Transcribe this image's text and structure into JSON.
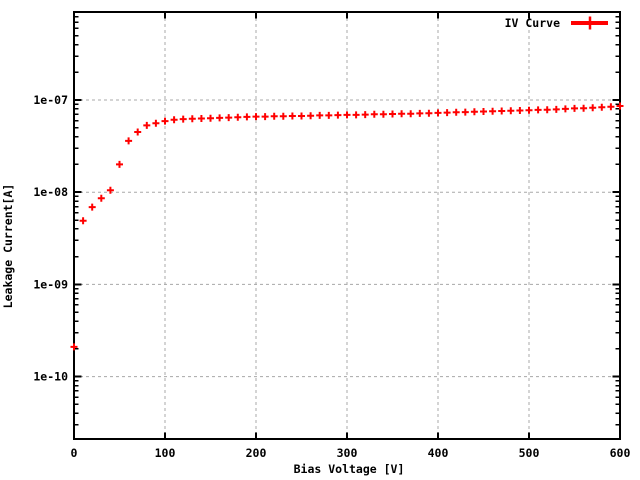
{
  "chart_data": {
    "type": "scatter",
    "title": "",
    "xlabel": "Bias Voltage [V]",
    "ylabel": "Leakage Current[A]",
    "x_range": [
      0,
      600
    ],
    "y_scale": "log",
    "y_range": [
      "2e-11",
      "9e-07"
    ],
    "grid": true,
    "marker": "plus",
    "legend_position": "top-right-inside",
    "x_ticks": [
      0,
      100,
      200,
      300,
      400,
      500,
      600
    ],
    "x_tick_labels": [
      "0",
      "100",
      "200",
      "300",
      "400",
      "500",
      "600"
    ],
    "y_tick_labels": [
      "1e-10",
      "1e-09",
      "1e-08",
      "1e-07"
    ],
    "colors": {
      "series": "#ff0000",
      "grid": "#a8a8a8",
      "border": "#000000",
      "text": "#000000",
      "background": "#ffffff"
    },
    "series": [
      {
        "name": "IV Curve",
        "x": [
          0,
          10,
          20,
          30,
          40,
          50,
          60,
          70,
          80,
          90,
          100,
          110,
          120,
          130,
          140,
          150,
          160,
          170,
          180,
          190,
          200,
          210,
          220,
          230,
          240,
          250,
          260,
          270,
          280,
          290,
          300,
          310,
          320,
          330,
          340,
          350,
          360,
          370,
          380,
          390,
          400,
          410,
          420,
          430,
          440,
          450,
          460,
          470,
          480,
          490,
          500,
          510,
          520,
          530,
          540,
          550,
          560,
          570,
          580,
          590,
          600
        ],
        "y": [
          2.1e-10,
          4.9e-09,
          6.9e-09,
          8.6e-09,
          1.05e-08,
          2e-08,
          3.6e-08,
          4.5e-08,
          5.3e-08,
          5.6e-08,
          5.9e-08,
          6.1e-08,
          6.2e-08,
          6.25e-08,
          6.3e-08,
          6.35e-08,
          6.4e-08,
          6.45e-08,
          6.5e-08,
          6.55e-08,
          6.6e-08,
          6.6e-08,
          6.65e-08,
          6.65e-08,
          6.7e-08,
          6.7e-08,
          6.75e-08,
          6.8e-08,
          6.8e-08,
          6.85e-08,
          6.9e-08,
          6.9e-08,
          6.95e-08,
          7e-08,
          7e-08,
          7.05e-08,
          7.1e-08,
          7.1e-08,
          7.15e-08,
          7.2e-08,
          7.25e-08,
          7.3e-08,
          7.35e-08,
          7.4e-08,
          7.45e-08,
          7.5e-08,
          7.55e-08,
          7.6e-08,
          7.65e-08,
          7.7e-08,
          7.75e-08,
          7.8e-08,
          7.85e-08,
          7.9e-08,
          8e-08,
          8.1e-08,
          8.15e-08,
          8.25e-08,
          8.35e-08,
          8.45e-08,
          8.6e-08
        ]
      }
    ]
  }
}
